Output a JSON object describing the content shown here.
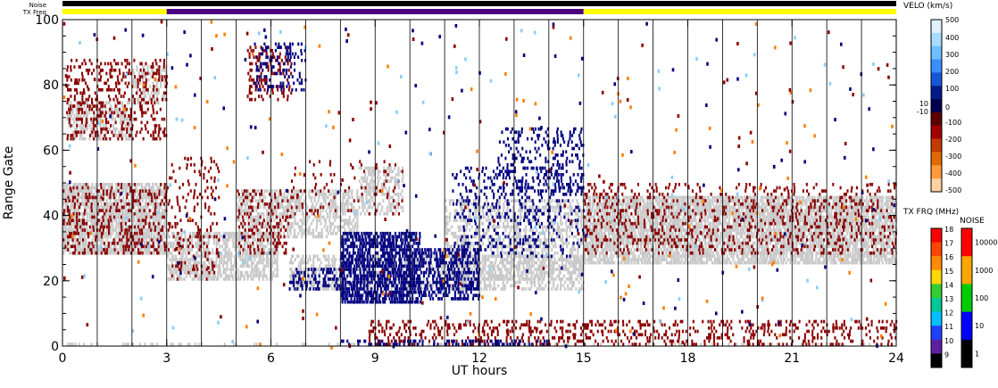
{
  "chart_data": {
    "type": "scatter",
    "xlabel": "UT hours",
    "ylabel": "Range Gate",
    "xlim": [
      0,
      24
    ],
    "ylim": [
      0,
      100
    ],
    "x_ticks": [
      "0",
      "3",
      "6",
      "9",
      "12",
      "15",
      "18",
      "21",
      "24"
    ],
    "y_ticks": [
      "0",
      "20",
      "40",
      "60",
      "80",
      "100"
    ],
    "hour_dividers": [
      1,
      2,
      3,
      4,
      5,
      6,
      7,
      8,
      9,
      10,
      11,
      12,
      13,
      14,
      15,
      16,
      17,
      18,
      19,
      20,
      21,
      22,
      23
    ],
    "status_bars": {
      "noise_label": "Noise",
      "txfreq_label": "TX Freq",
      "noise_color": "#000000",
      "txfreq_segments": [
        {
          "from": 0,
          "to": 3,
          "color": "#ffff00"
        },
        {
          "from": 3,
          "to": 15,
          "color": "#4b0082"
        },
        {
          "from": 15,
          "to": 24,
          "color": "#ffff00"
        }
      ]
    },
    "colors": {
      "ground_scatter": "#c8c8c8",
      "negative_velocity": "#8b0000",
      "positive_velocity": "#000080",
      "scattered_points": [
        "#8b0000",
        "#000080",
        "#ff7f00",
        "#87cefa"
      ]
    },
    "regions": [
      {
        "kind": "ground",
        "x": [
          0,
          3
        ],
        "y": [
          28,
          50
        ],
        "density": 0.85
      },
      {
        "kind": "ground",
        "x": [
          0.1,
          2.0
        ],
        "y": [
          63,
          75
        ],
        "density": 0.55
      },
      {
        "kind": "ground",
        "x": [
          2.0,
          3.0
        ],
        "y": [
          74,
          86
        ],
        "density": 0.5
      },
      {
        "kind": "ground",
        "x": [
          3,
          6.2
        ],
        "y": [
          20,
          35
        ],
        "density": 0.7
      },
      {
        "kind": "ground",
        "x": [
          5,
          8.5
        ],
        "y": [
          33,
          48
        ],
        "density": 0.6
      },
      {
        "kind": "ground",
        "x": [
          8.5,
          9.8
        ],
        "y": [
          40,
          55
        ],
        "density": 0.5
      },
      {
        "kind": "ground",
        "x": [
          6.5,
          15
        ],
        "y": [
          17,
          28
        ],
        "density": 0.5
      },
      {
        "kind": "ground",
        "x": [
          11,
          15
        ],
        "y": [
          20,
          45
        ],
        "density": 0.45
      },
      {
        "kind": "ground",
        "x": [
          15,
          24
        ],
        "y": [
          25,
          46
        ],
        "density": 0.85
      },
      {
        "kind": "ground",
        "x": [
          0,
          24
        ],
        "y": [
          0,
          1
        ],
        "density": 0.2
      },
      {
        "kind": "neg",
        "x": [
          0,
          3
        ],
        "y": [
          28,
          50
        ],
        "density": 0.28
      },
      {
        "kind": "neg",
        "x": [
          0.1,
          3
        ],
        "y": [
          63,
          88
        ],
        "density": 0.28
      },
      {
        "kind": "neg",
        "x": [
          3,
          4.5
        ],
        "y": [
          20,
          58
        ],
        "density": 0.15
      },
      {
        "kind": "neg",
        "x": [
          5,
          6.5
        ],
        "y": [
          28,
          48
        ],
        "density": 0.22
      },
      {
        "kind": "neg",
        "x": [
          5.3,
          6.6
        ],
        "y": [
          75,
          92
        ],
        "density": 0.3
      },
      {
        "kind": "neg",
        "x": [
          6.5,
          9.8
        ],
        "y": [
          40,
          57
        ],
        "density": 0.1
      },
      {
        "kind": "neg",
        "x": [
          15,
          24
        ],
        "y": [
          28,
          50
        ],
        "density": 0.2
      },
      {
        "kind": "neg",
        "x": [
          8.8,
          24
        ],
        "y": [
          0,
          8
        ],
        "density": 0.28
      },
      {
        "kind": "pos",
        "x": [
          6.5,
          8
        ],
        "y": [
          17,
          24
        ],
        "density": 0.45
      },
      {
        "kind": "pos",
        "x": [
          8,
          10.3
        ],
        "y": [
          13,
          35
        ],
        "density": 0.8
      },
      {
        "kind": "pos",
        "x": [
          10.3,
          12
        ],
        "y": [
          14,
          30
        ],
        "density": 0.55
      },
      {
        "kind": "pos",
        "x": [
          11.2,
          15
        ],
        "y": [
          27,
          55
        ],
        "density": 0.18
      },
      {
        "kind": "pos",
        "x": [
          12.5,
          15
        ],
        "y": [
          46,
          67
        ],
        "density": 0.25
      },
      {
        "kind": "pos",
        "x": [
          5.5,
          7
        ],
        "y": [
          78,
          93
        ],
        "density": 0.25
      },
      {
        "kind": "pos",
        "x": [
          8,
          14
        ],
        "y": [
          0,
          2
        ],
        "density": 0.4
      }
    ]
  },
  "velo_scale": {
    "title": "VELO (km/s)",
    "labels": [
      "500",
      "400",
      "300",
      "200",
      "100",
      "10",
      "0",
      "-10",
      "-100",
      "-200",
      "-300",
      "-400",
      "-500"
    ],
    "colors": [
      "#dff1ff",
      "#a8dcff",
      "#6cc0ff",
      "#3a8fff",
      "#1656d6",
      "#001a8c",
      "#000050",
      "#5a0000",
      "#a00000",
      "#c43a00",
      "#e06a00",
      "#ff9a3a",
      "#ffd0a0"
    ]
  },
  "txfreq_scale": {
    "title": "TX FRQ (MHz)",
    "labels": [
      "18",
      "17",
      "16",
      "15",
      "14",
      "13",
      "12",
      "11",
      "10",
      "9"
    ],
    "colors": [
      "#ff0000",
      "#ff4500",
      "#ff8c00",
      "#ffd700",
      "#32cd32",
      "#00c896",
      "#00bfff",
      "#1e40ff",
      "#5b1fa0",
      "#000000"
    ]
  },
  "noise_scale": {
    "title": "NOISE",
    "labels": [
      "10000",
      "1000",
      "100",
      "10",
      "1"
    ],
    "colors": [
      "#ff0000",
      "#ffa500",
      "#00cc00",
      "#0000ff",
      "#000000"
    ]
  }
}
